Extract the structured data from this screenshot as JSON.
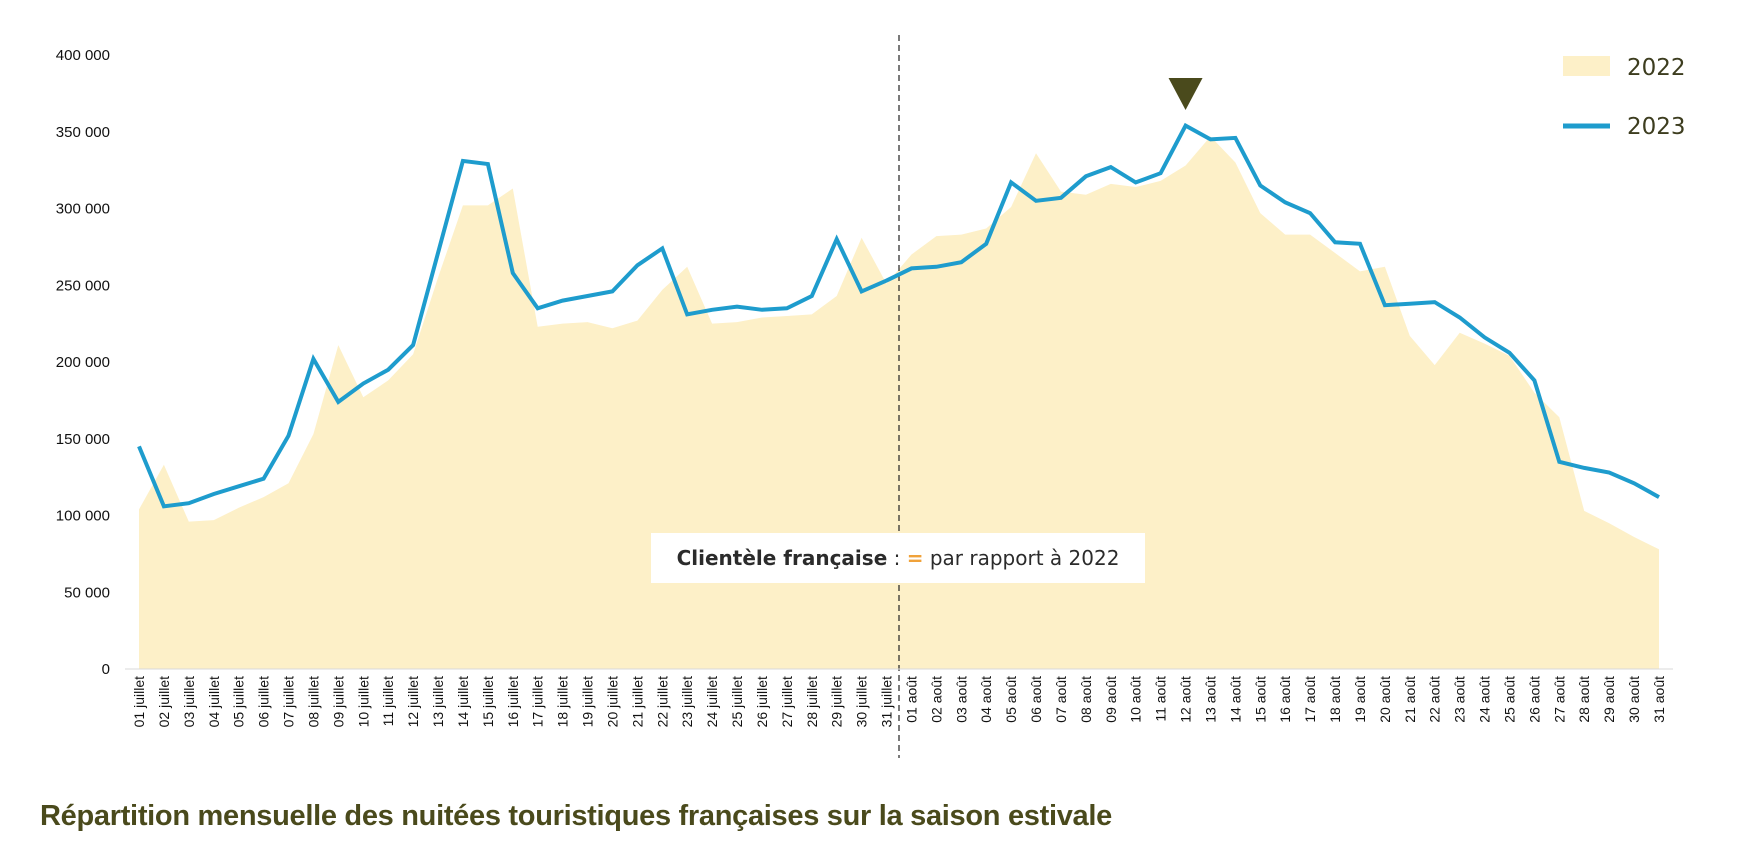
{
  "caption": "Répartition mensuelle des nuitées touristiques françaises sur la saison estivale",
  "annotation": {
    "bold": "Clientèle française",
    "sep": " : ",
    "symbol": "=",
    "text": " par rapport à 2022"
  },
  "colors": {
    "area_2022": "#fdf0c8",
    "line_2023": "#1e9ccd",
    "marker": "#4a4a1c",
    "annotation_symbol": "#f0a23a"
  },
  "chart_data": {
    "type": "line",
    "ylim": [
      0,
      400000
    ],
    "yticks": [
      0,
      50000,
      100000,
      150000,
      200000,
      250000,
      300000,
      350000,
      400000
    ],
    "ytick_labels": [
      "0",
      "50 000",
      "100 000",
      "150 000",
      "200 000",
      "250 000",
      "300 000",
      "350 000",
      "400 000"
    ],
    "grid": false,
    "legend_position": "top-right",
    "divider_after": "31 juillet",
    "marker_at": "12 août",
    "categories": [
      "01 juillet",
      "02 juillet",
      "03 juillet",
      "04 juillet",
      "05 juillet",
      "06 juillet",
      "07 juillet",
      "08 juillet",
      "09 juillet",
      "10 juillet",
      "11 juillet",
      "12 juillet",
      "13 juillet",
      "14 juillet",
      "15 juillet",
      "16 juillet",
      "17 juillet",
      "18 juillet",
      "19 juillet",
      "20 juillet",
      "21 juillet",
      "22 juillet",
      "23 juillet",
      "24 juillet",
      "25 juillet",
      "26 juillet",
      "27 juillet",
      "28 juillet",
      "29 juillet",
      "30 juillet",
      "31 juillet",
      "01 août",
      "02 août",
      "03 août",
      "04 août",
      "05 août",
      "06 août",
      "07 août",
      "08 août",
      "09 août",
      "10 août",
      "11 août",
      "12 août",
      "13 août",
      "14 août",
      "15 août",
      "16 août",
      "17 août",
      "18 août",
      "19 août",
      "20 août",
      "21 août",
      "22 août",
      "23 août",
      "24 août",
      "25 août",
      "26 août",
      "27 août",
      "28 août",
      "29 août",
      "30 août",
      "31 août"
    ],
    "series": [
      {
        "name": "2022",
        "style": "area",
        "values": [
          104000,
          133000,
          96000,
          97000,
          105000,
          112000,
          121000,
          153000,
          211000,
          177000,
          188000,
          205000,
          255000,
          302000,
          302000,
          313000,
          223000,
          225000,
          226000,
          222000,
          227000,
          247000,
          262000,
          225000,
          226000,
          229000,
          230000,
          231000,
          243000,
          281000,
          251000,
          270000,
          282000,
          283000,
          287000,
          301000,
          336000,
          311000,
          309000,
          316000,
          314000,
          318000,
          328000,
          347000,
          330000,
          297000,
          283000,
          283000,
          271000,
          259000,
          262000,
          217000,
          198000,
          219000,
          212000,
          204000,
          180000,
          164000,
          103000,
          95000,
          86000,
          78000
        ]
      },
      {
        "name": "2023",
        "style": "line",
        "values": [
          145000,
          106000,
          108000,
          114000,
          119000,
          124000,
          152000,
          202000,
          174000,
          186000,
          195000,
          211000,
          271000,
          331000,
          329000,
          258000,
          235000,
          240000,
          243000,
          246000,
          263000,
          274000,
          231000,
          234000,
          236000,
          234000,
          235000,
          243000,
          280000,
          246000,
          253000,
          261000,
          262000,
          265000,
          277000,
          317000,
          305000,
          307000,
          321000,
          327000,
          317000,
          323000,
          354000,
          345000,
          346000,
          315000,
          304000,
          297000,
          278000,
          277000,
          237000,
          238000,
          239000,
          229000,
          216000,
          206000,
          188000,
          135000,
          131000,
          128000,
          121000,
          112000
        ]
      }
    ]
  }
}
